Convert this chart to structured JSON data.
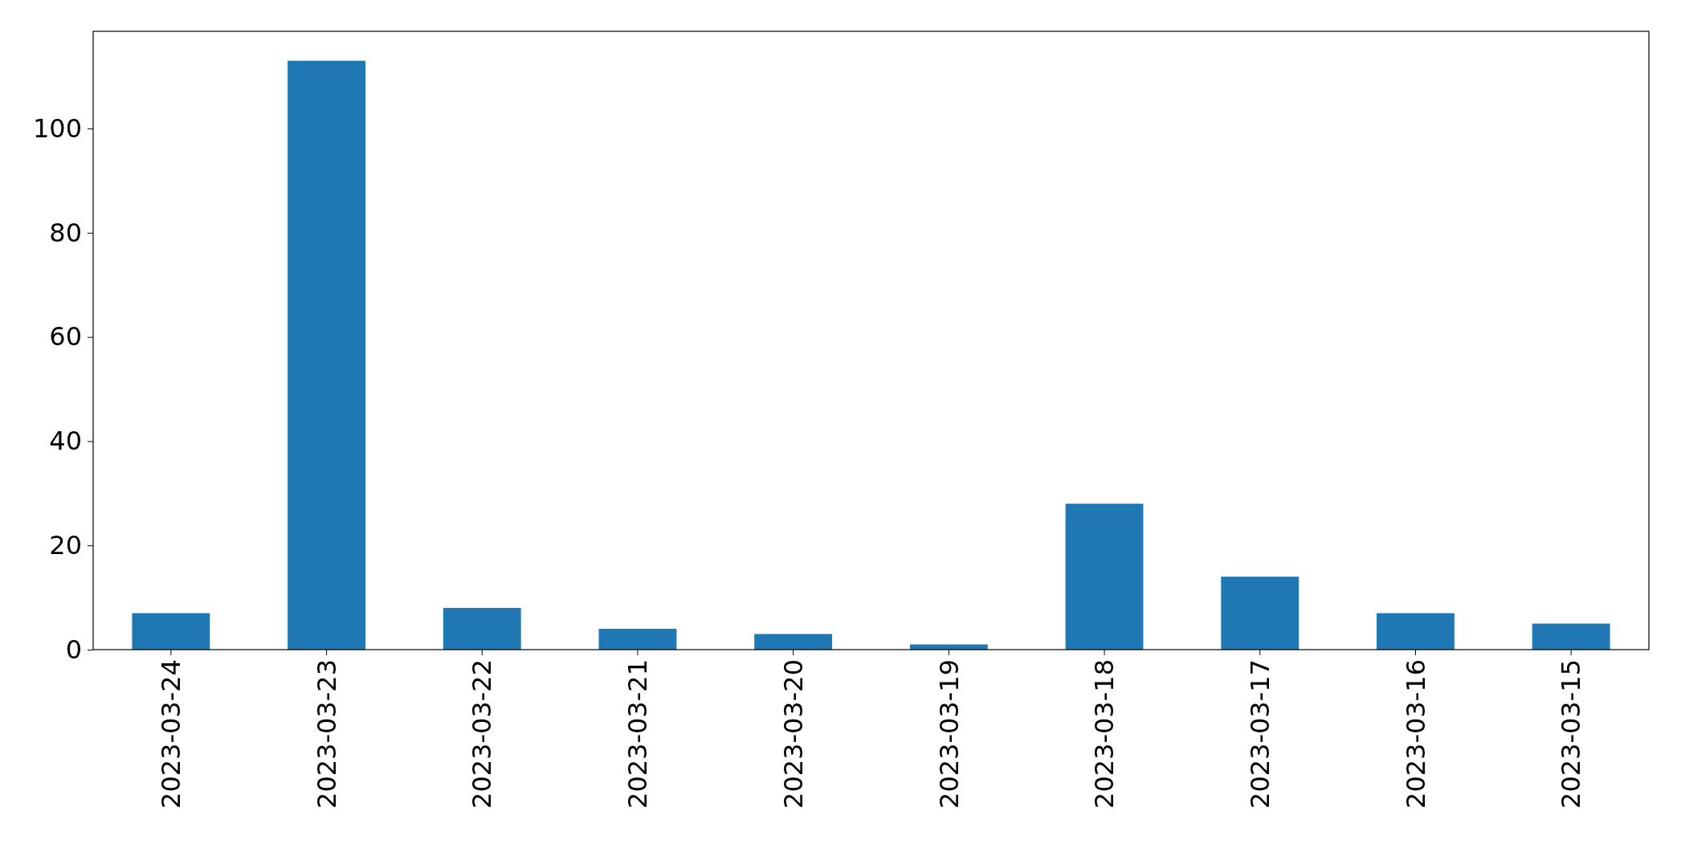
{
  "chart_data": {
    "type": "bar",
    "categories": [
      "2023-03-24",
      "2023-03-23",
      "2023-03-22",
      "2023-03-21",
      "2023-03-20",
      "2023-03-19",
      "2023-03-18",
      "2023-03-17",
      "2023-03-16",
      "2023-03-15"
    ],
    "values": [
      7,
      113,
      8,
      4,
      3,
      1,
      28,
      14,
      7,
      5
    ],
    "color": "#1f77b4",
    "ylim": [
      0,
      118.65
    ],
    "yticks": [
      0,
      20,
      40,
      60,
      80,
      100
    ],
    "grid": false
  }
}
